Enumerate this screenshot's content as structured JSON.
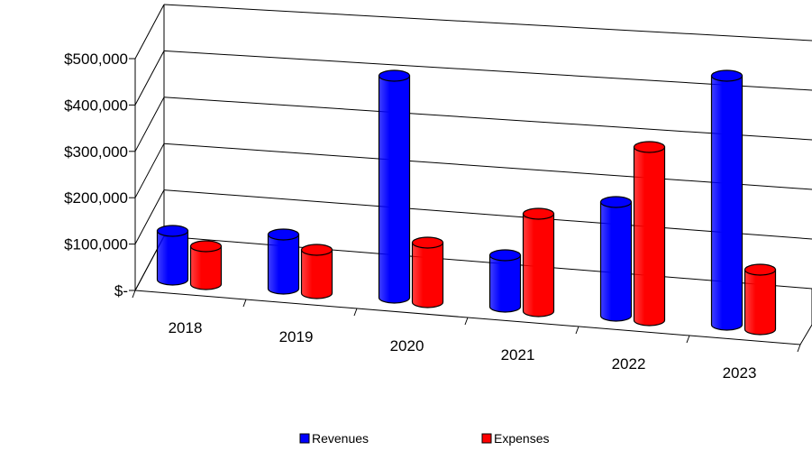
{
  "chart_data": {
    "type": "bar",
    "style": "3d-cylinder",
    "categories": [
      "2018",
      "2019",
      "2020",
      "2021",
      "2022",
      "2023"
    ],
    "series": [
      {
        "name": "Revenues",
        "color": "#0000ff",
        "values": [
          90000,
          100000,
          410000,
          95000,
          210000,
          460000
        ]
      },
      {
        "name": "Expenses",
        "color": "#ff0000",
        "values": [
          70000,
          80000,
          110000,
          180000,
          320000,
          110000
        ]
      }
    ],
    "y_ticks": [
      "$-",
      "$100,000",
      "$200,000",
      "$300,000",
      "$400,000",
      "$500,000"
    ],
    "ylim": [
      0,
      500000
    ],
    "grid": true,
    "legend_position": "bottom"
  }
}
